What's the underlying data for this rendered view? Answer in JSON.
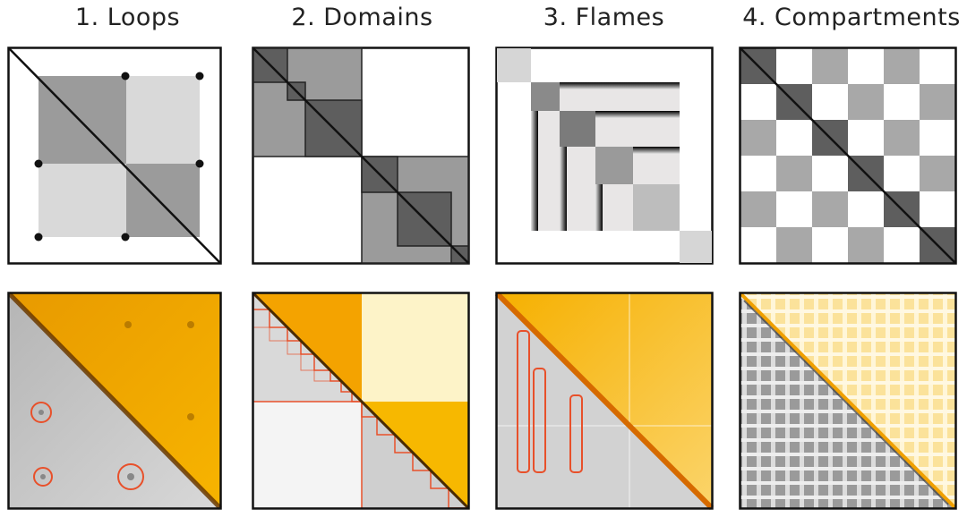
{
  "titles": {
    "loops": "1. Loops",
    "domains": "2. Domains",
    "flames": "3. Flames",
    "compartments": "4. Compartments"
  },
  "colors": {
    "frame": "#111111",
    "dark_gray": "#5e5e5e",
    "mid_gray": "#9b9b9b",
    "light_gray": "#d6d6d6",
    "lighter_gray": "#e6e6e6",
    "heatmap_orange": "#f4a300",
    "heatmap_light_orange": "#fbd56a",
    "heatmap_gray": "#c9c9c9",
    "annotation_red": "#e8502a"
  },
  "panels": [
    {
      "id": "loops-schematic",
      "row": "schematic",
      "column": 1
    },
    {
      "id": "domains-schematic",
      "row": "schematic",
      "column": 2
    },
    {
      "id": "flames-schematic",
      "row": "schematic",
      "column": 3
    },
    {
      "id": "compartments-schematic",
      "row": "schematic",
      "column": 4
    },
    {
      "id": "loops-heatmap",
      "row": "heatmap",
      "column": 1
    },
    {
      "id": "domains-heatmap",
      "row": "heatmap",
      "column": 2
    },
    {
      "id": "flames-heatmap",
      "row": "heatmap",
      "column": 3
    },
    {
      "id": "compartments-heatmap",
      "row": "heatmap",
      "column": 4
    }
  ]
}
